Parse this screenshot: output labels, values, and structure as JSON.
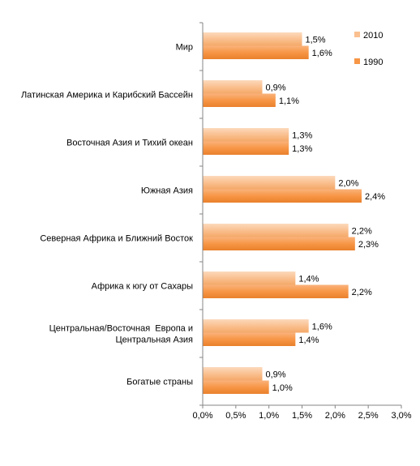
{
  "chart_data": {
    "type": "bar",
    "orientation": "horizontal",
    "categories": [
      [
        "Мир"
      ],
      [
        "Латинская Америка и Карибский Бассейн"
      ],
      [
        "Восточная Азия и Тихий океан"
      ],
      [
        "Южная Азия"
      ],
      [
        "Северная Африка и Ближний Восток"
      ],
      [
        "Африка к югу от Сахары"
      ],
      [
        "Центральная/Восточная  Европа и",
        "Центральная Азия"
      ],
      [
        "Богатые страны"
      ]
    ],
    "series": [
      {
        "name": "2010",
        "color": "#FAC090",
        "values": [
          1.5,
          0.9,
          1.3,
          2.0,
          2.2,
          1.4,
          1.6,
          0.9
        ],
        "labels": [
          "1,5%",
          "0,9%",
          "1,3%",
          "2,0%",
          "2,2%",
          "1,4%",
          "1,6%",
          "0,9%"
        ]
      },
      {
        "name": "1990",
        "color": "#F79646",
        "values": [
          1.6,
          1.1,
          1.3,
          2.4,
          2.3,
          2.2,
          1.4,
          1.0
        ],
        "labels": [
          "1,6%",
          "1,1%",
          "1,3%",
          "2,4%",
          "2,3%",
          "2,2%",
          "1,4%",
          "1,0%"
        ]
      }
    ],
    "xlim": [
      0,
      3.0
    ],
    "ticks": [
      0,
      0.5,
      1.0,
      1.5,
      2.0,
      2.5,
      3.0
    ],
    "tick_labels": [
      "0,0%",
      "0,5%",
      "1,0%",
      "1,5%",
      "2,0%",
      "2,5%",
      "3,0%"
    ],
    "legend": "right",
    "grid": false
  }
}
